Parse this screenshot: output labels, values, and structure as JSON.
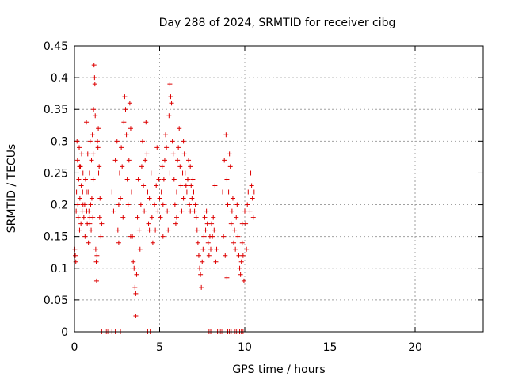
{
  "chart_data": {
    "type": "scatter",
    "title": "Day 288 of 2024, SRMTID for receiver cibg",
    "xlabel": "GPS time / hours",
    "ylabel": "SRMTID / TECUs",
    "xlim": [
      0,
      24
    ],
    "ylim": [
      0,
      0.45
    ],
    "xticks": [
      0,
      5,
      10,
      15,
      20
    ],
    "xtick_labels": [
      "0",
      "5",
      "10",
      "15",
      "20"
    ],
    "yticks": [
      0,
      0.05,
      0.1,
      0.15,
      0.2,
      0.25,
      0.3,
      0.35,
      0.4,
      0.45
    ],
    "ytick_labels": [
      "0",
      "0.05",
      "0.1",
      "0.15",
      "0.2",
      "0.25",
      "0.3",
      "0.35",
      "0.4",
      "0.45"
    ],
    "grid": true,
    "legend": "none",
    "marker": "plus",
    "series_color": "#dd0000",
    "series": [
      {
        "points": [
          [
            0.02,
            0.13
          ],
          [
            0.05,
            0.12
          ],
          [
            0.08,
            0.11
          ],
          [
            0.1,
            0.19
          ],
          [
            0.12,
            0.22
          ],
          [
            0.15,
            0.3
          ],
          [
            0.18,
            0.27
          ],
          [
            0.2,
            0.2
          ],
          [
            0.22,
            0.18
          ],
          [
            0.25,
            0.24
          ],
          [
            0.28,
            0.29
          ],
          [
            0.3,
            0.16
          ],
          [
            0.32,
            0.21
          ],
          [
            0.35,
            0.26
          ],
          [
            0.38,
            0.17
          ],
          [
            0.4,
            0.23
          ],
          [
            0.42,
            0.28
          ],
          [
            0.45,
            0.19
          ],
          [
            0.48,
            0.22
          ],
          [
            0.5,
            0.25
          ],
          [
            0.55,
            0.18
          ],
          [
            0.6,
            0.2
          ],
          [
            0.62,
            0.15
          ],
          [
            0.65,
            0.24
          ],
          [
            0.7,
            0.33
          ],
          [
            0.72,
            0.19
          ],
          [
            0.75,
            0.17
          ],
          [
            0.78,
            0.28
          ],
          [
            0.8,
            0.22
          ],
          [
            0.82,
            0.14
          ],
          [
            0.85,
            0.19
          ],
          [
            0.88,
            0.25
          ],
          [
            0.9,
            0.18
          ],
          [
            0.92,
            0.3
          ],
          [
            0.95,
            0.2
          ],
          [
            0.98,
            0.16
          ],
          [
            1.0,
            0.27
          ],
          [
            1.02,
            0.21
          ],
          [
            1.05,
            0.31
          ],
          [
            1.08,
            0.18
          ],
          [
            1.1,
            0.24
          ],
          [
            1.12,
            0.35
          ],
          [
            1.15,
            0.42
          ],
          [
            1.18,
            0.4
          ],
          [
            1.2,
            0.39
          ],
          [
            1.22,
            0.34
          ],
          [
            1.25,
            0.13
          ],
          [
            1.28,
            0.11
          ],
          [
            1.3,
            0.08
          ],
          [
            1.32,
            0.12
          ],
          [
            1.35,
            0.3
          ],
          [
            1.38,
            0.29
          ],
          [
            1.4,
            0.32
          ],
          [
            1.42,
            0.25
          ],
          [
            1.45,
            0.26
          ],
          [
            1.48,
            0.18
          ],
          [
            1.5,
            0.21
          ],
          [
            1.55,
            0.15
          ],
          [
            1.6,
            0.17
          ],
          [
            0.3,
            0.26
          ],
          [
            0.5,
            0.2
          ],
          [
            0.7,
            0.22
          ],
          [
            0.9,
            0.17
          ],
          [
            1.1,
            0.28
          ],
          [
            2.2,
            0.22
          ],
          [
            2.3,
            0.19
          ],
          [
            2.4,
            0.27
          ],
          [
            2.5,
            0.3
          ],
          [
            2.55,
            0.16
          ],
          [
            2.6,
            0.14
          ],
          [
            2.65,
            0.25
          ],
          [
            2.7,
            0.21
          ],
          [
            2.75,
            0.29
          ],
          [
            2.8,
            0.26
          ],
          [
            2.85,
            0.18
          ],
          [
            2.9,
            0.33
          ],
          [
            2.95,
            0.37
          ],
          [
            3.0,
            0.35
          ],
          [
            3.05,
            0.31
          ],
          [
            3.1,
            0.24
          ],
          [
            3.15,
            0.2
          ],
          [
            3.2,
            0.27
          ],
          [
            3.25,
            0.36
          ],
          [
            3.3,
            0.32
          ],
          [
            3.35,
            0.22
          ],
          [
            3.4,
            0.15
          ],
          [
            3.45,
            0.11
          ],
          [
            3.5,
            0.1
          ],
          [
            3.55,
            0.07
          ],
          [
            3.6,
            0.06
          ],
          [
            3.65,
            0.09
          ],
          [
            3.7,
            0.18
          ],
          [
            3.75,
            0.24
          ],
          [
            3.8,
            0.16
          ],
          [
            3.85,
            0.13
          ],
          [
            3.9,
            0.2
          ],
          [
            3.95,
            0.26
          ],
          [
            4.0,
            0.3
          ],
          [
            4.05,
            0.23
          ],
          [
            4.1,
            0.19
          ],
          [
            4.15,
            0.27
          ],
          [
            4.2,
            0.33
          ],
          [
            4.25,
            0.28
          ],
          [
            4.3,
            0.22
          ],
          [
            4.35,
            0.17
          ],
          [
            4.4,
            0.21
          ],
          [
            4.5,
            0.25
          ],
          [
            4.55,
            0.18
          ],
          [
            4.6,
            0.14
          ],
          [
            4.7,
            0.2
          ],
          [
            4.75,
            0.16
          ],
          [
            4.8,
            0.23
          ],
          [
            4.85,
            0.29
          ],
          [
            4.9,
            0.19
          ],
          [
            4.95,
            0.24
          ],
          [
            5.0,
            0.21
          ],
          [
            3.6,
            0.025
          ],
          [
            4.4,
            0.16
          ],
          [
            3.3,
            0.15
          ],
          [
            2.6,
            0.2
          ],
          [
            5.05,
            0.18
          ],
          [
            5.1,
            0.22
          ],
          [
            5.15,
            0.26
          ],
          [
            5.2,
            0.2
          ],
          [
            5.25,
            0.24
          ],
          [
            5.3,
            0.27
          ],
          [
            5.35,
            0.31
          ],
          [
            5.4,
            0.29
          ],
          [
            5.45,
            0.19
          ],
          [
            5.5,
            0.16
          ],
          [
            5.55,
            0.34
          ],
          [
            5.6,
            0.39
          ],
          [
            5.65,
            0.37
          ],
          [
            5.7,
            0.36
          ],
          [
            5.75,
            0.3
          ],
          [
            5.8,
            0.28
          ],
          [
            5.85,
            0.24
          ],
          [
            5.9,
            0.2
          ],
          [
            5.95,
            0.17
          ],
          [
            6.0,
            0.22
          ],
          [
            6.05,
            0.27
          ],
          [
            6.1,
            0.29
          ],
          [
            6.15,
            0.32
          ],
          [
            6.2,
            0.26
          ],
          [
            6.25,
            0.23
          ],
          [
            6.3,
            0.19
          ],
          [
            6.35,
            0.25
          ],
          [
            6.4,
            0.21
          ],
          [
            6.45,
            0.28
          ],
          [
            6.5,
            0.25
          ],
          [
            6.55,
            0.23
          ],
          [
            6.6,
            0.22
          ],
          [
            6.65,
            0.24
          ],
          [
            6.7,
            0.27
          ],
          [
            6.75,
            0.2
          ],
          [
            6.8,
            0.26
          ],
          [
            6.85,
            0.23
          ],
          [
            6.9,
            0.21
          ],
          [
            6.95,
            0.24
          ],
          [
            7.0,
            0.22
          ],
          [
            7.05,
            0.19
          ],
          [
            7.1,
            0.2
          ],
          [
            7.15,
            0.18
          ],
          [
            7.2,
            0.16
          ],
          [
            7.25,
            0.14
          ],
          [
            7.3,
            0.12
          ],
          [
            7.35,
            0.1
          ],
          [
            7.4,
            0.09
          ],
          [
            7.45,
            0.07
          ],
          [
            7.5,
            0.11
          ],
          [
            7.55,
            0.13
          ],
          [
            7.6,
            0.15
          ],
          [
            7.65,
            0.18
          ],
          [
            7.7,
            0.16
          ],
          [
            7.75,
            0.19
          ],
          [
            7.8,
            0.17
          ],
          [
            7.85,
            0.14
          ],
          [
            7.9,
            0.12
          ],
          [
            7.95,
            0.15
          ],
          [
            8.0,
            0.13
          ],
          [
            8.05,
            0.17
          ],
          [
            8.1,
            0.15
          ],
          [
            8.15,
            0.18
          ],
          [
            8.2,
            0.16
          ],
          [
            8.25,
            0.23
          ],
          [
            8.3,
            0.11
          ],
          [
            8.35,
            0.13
          ],
          [
            5.2,
            0.15
          ],
          [
            5.6,
            0.25
          ],
          [
            6.0,
            0.18
          ],
          [
            6.4,
            0.3
          ],
          [
            6.8,
            0.19
          ],
          [
            8.7,
            0.22
          ],
          [
            8.75,
            0.15
          ],
          [
            8.8,
            0.27
          ],
          [
            8.85,
            0.12
          ],
          [
            8.9,
            0.31
          ],
          [
            8.95,
            0.24
          ],
          [
            9.0,
            0.2
          ],
          [
            9.05,
            0.22
          ],
          [
            9.1,
            0.28
          ],
          [
            9.15,
            0.26
          ],
          [
            9.2,
            0.17
          ],
          [
            9.25,
            0.19
          ],
          [
            9.3,
            0.21
          ],
          [
            9.35,
            0.14
          ],
          [
            9.4,
            0.16
          ],
          [
            9.45,
            0.13
          ],
          [
            9.5,
            0.18
          ],
          [
            9.55,
            0.2
          ],
          [
            9.6,
            0.15
          ],
          [
            9.65,
            0.12
          ],
          [
            9.7,
            0.1
          ],
          [
            9.75,
            0.09
          ],
          [
            9.8,
            0.11
          ],
          [
            9.85,
            0.14
          ],
          [
            9.9,
            0.12
          ],
          [
            9.95,
            0.08
          ],
          [
            10.0,
            0.19
          ],
          [
            10.05,
            0.17
          ],
          [
            10.1,
            0.13
          ],
          [
            10.15,
            0.2
          ],
          [
            10.2,
            0.22
          ],
          [
            10.3,
            0.19
          ],
          [
            10.35,
            0.25
          ],
          [
            10.4,
            0.23
          ],
          [
            10.45,
            0.21
          ],
          [
            10.5,
            0.18
          ],
          [
            10.55,
            0.22
          ],
          [
            8.95,
            0.085
          ],
          [
            9.85,
            0.17
          ],
          [
            1.6,
            0
          ],
          [
            1.8,
            0
          ],
          [
            1.9,
            0
          ],
          [
            2.0,
            0
          ],
          [
            2.2,
            0
          ],
          [
            2.4,
            0
          ],
          [
            2.7,
            0
          ],
          [
            4.3,
            0
          ],
          [
            4.45,
            0
          ],
          [
            7.9,
            0
          ],
          [
            8.0,
            0
          ],
          [
            8.4,
            0
          ],
          [
            8.5,
            0
          ],
          [
            8.6,
            0
          ],
          [
            8.7,
            0
          ],
          [
            9.0,
            0
          ],
          [
            9.1,
            0
          ],
          [
            9.2,
            0
          ],
          [
            9.4,
            0
          ],
          [
            9.5,
            0
          ],
          [
            9.6,
            0
          ],
          [
            9.7,
            0
          ],
          [
            9.8,
            0
          ],
          [
            9.9,
            0
          ]
        ]
      }
    ]
  }
}
